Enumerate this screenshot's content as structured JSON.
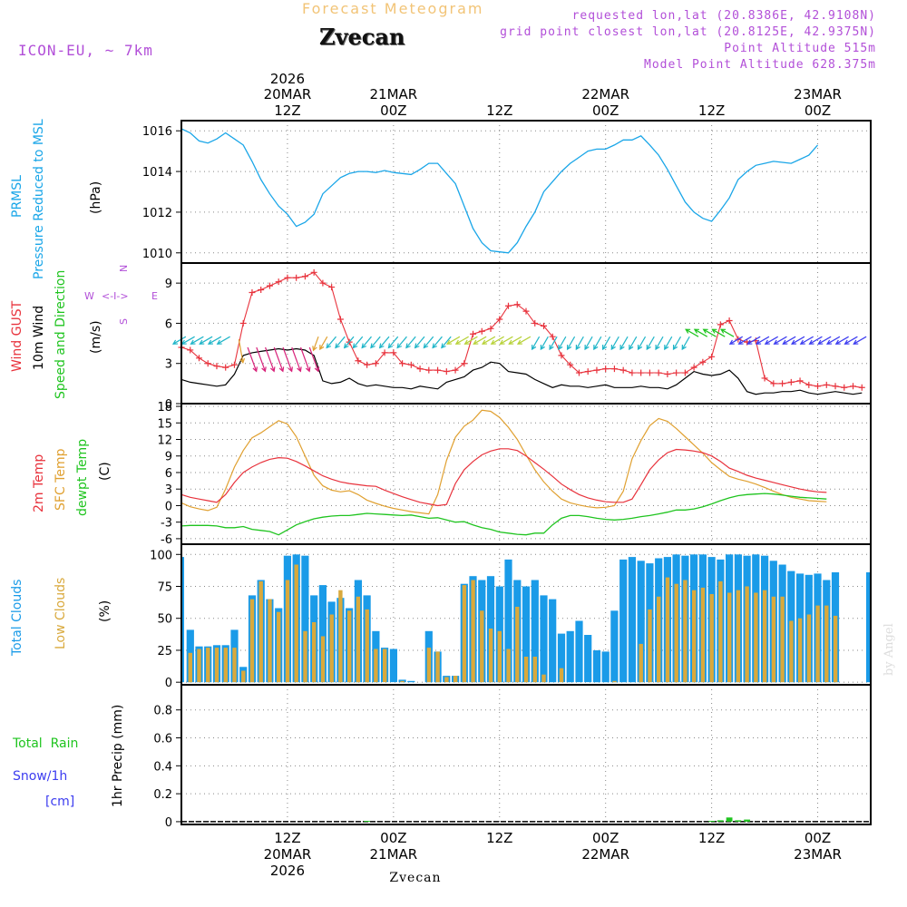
{
  "header": {
    "product": "Forecast Meteogram",
    "station": "Zvecan",
    "model": "ICON-EU, ~ 7km",
    "requested": "requested lon,lat (20.8386E, 42.9108N)",
    "grid_point": "grid point closest lon,lat (20.8125E, 42.9375N)",
    "point_alt": "Point Altitude 515m",
    "model_alt": "Model Point Altitude 628.375m",
    "footer_station": "Zvecan",
    "watermark": "by Angel"
  },
  "time_axis": {
    "top": [
      {
        "l1": "2026",
        "l2": "20MAR",
        "l3": "12Z",
        "h": 12
      },
      {
        "l1": "",
        "l2": "21MAR",
        "l3": "00Z",
        "h": 24
      },
      {
        "l1": "",
        "l2": "",
        "l3": "12Z",
        "h": 36
      },
      {
        "l1": "",
        "l2": "22MAR",
        "l3": "00Z",
        "h": 48
      },
      {
        "l1": "",
        "l2": "",
        "l3": "12Z",
        "h": 60
      },
      {
        "l1": "",
        "l2": "23MAR",
        "l3": "00Z",
        "h": 72
      }
    ],
    "bottom": [
      {
        "l1": "12Z",
        "l2": "20MAR",
        "l3": "2026",
        "h": 12
      },
      {
        "l1": "00Z",
        "l2": "21MAR",
        "l3": "",
        "h": 24
      },
      {
        "l1": "12Z",
        "l2": "",
        "l3": "",
        "h": 36
      },
      {
        "l1": "00Z",
        "l2": "22MAR",
        "l3": "",
        "h": 48
      },
      {
        "l1": "12Z",
        "l2": "",
        "l3": "",
        "h": 60
      },
      {
        "l1": "00Z",
        "l2": "23MAR",
        "l3": "",
        "h": 72
      }
    ]
  },
  "panel_labels": {
    "pressure": {
      "name": "PRMSL",
      "desc": "Pressure Reduced to MSL",
      "unit": "(hPa)"
    },
    "wind": {
      "gust": "Wind GUST",
      "wind10": "10m Wind",
      "dir": "Speed and Direction",
      "unit": "(m/s)",
      "compass": {
        "n": "N",
        "s": "S",
        "e": "E",
        "w": "W",
        "arrow": "<-I->"
      }
    },
    "temp": {
      "t2m": "2m Temp",
      "sfc": "SFC Temp",
      "dew": "dewpt Temp",
      "unit": "(C)"
    },
    "cloud": {
      "total": "Total Clouds",
      "low": "Low Clouds",
      "unit": "(%)"
    },
    "precip": {
      "rain": "Total  Rain",
      "snow": "Snow/1h",
      "snow_unit": "[cm]",
      "title": "1hr Precip (mm)"
    }
  },
  "colors": {
    "pressure": "#1aa6e8",
    "gust": "#e8323c",
    "wind": "#000000",
    "t2m": "#e8323c",
    "sfc": "#e0a030",
    "dew": "#1fc41f",
    "total_cloud": "#1a9be8",
    "low_cloud": "#d9a93c",
    "rain": "#1fc41f",
    "snow": "#3c3cf0",
    "label_purple": "#b24fd8",
    "grid": "#888888"
  },
  "chart_data": [
    {
      "type": "line",
      "id": "pressure",
      "title": "PRMSL Pressure Reduced to MSL",
      "ylabel": "(hPa)",
      "ylim": [
        1009.5,
        1016.5
      ],
      "yticks": [
        1010,
        1012,
        1014,
        1016
      ],
      "x_hours_start": 0,
      "x_step_hours": 1,
      "values": [
        1016.1,
        1015.9,
        1015.5,
        1015.4,
        1015.6,
        1015.9,
        1015.6,
        1015.3,
        1014.5,
        1013.6,
        1012.9,
        1012.3,
        1011.9,
        1011.3,
        1011.5,
        1011.9,
        1012.9,
        1013.3,
        1013.7,
        1013.9,
        1014.0,
        1014.0,
        1013.95,
        1014.05,
        1013.95,
        1013.9,
        1013.85,
        1014.1,
        1014.4,
        1014.4,
        1013.9,
        1013.4,
        1012.3,
        1011.2,
        1010.5,
        1010.1,
        1010.05,
        1010.0,
        1010.5,
        1011.3,
        1012.0,
        1013.0,
        1013.5,
        1014.0,
        1014.4,
        1014.7,
        1015.0,
        1015.1,
        1015.1,
        1015.3,
        1015.55,
        1015.55,
        1015.75,
        1015.3,
        1014.8,
        1014.1,
        1013.3,
        1012.5,
        1012.0,
        1011.7,
        1011.55,
        1012.1,
        1012.7,
        1013.6,
        1014.0,
        1014.3,
        1014.4,
        1014.5,
        1014.45,
        1014.4,
        1014.6,
        1014.8,
        1015.3
      ]
    },
    {
      "type": "line",
      "id": "wind",
      "title": "Wind GUST / 10m Wind Speed and Direction",
      "ylabel": "(m/s)",
      "ylim": [
        0,
        10.5
      ],
      "yticks": [
        0,
        3,
        6,
        9
      ],
      "series": [
        {
          "name": "Wind GUST",
          "values": [
            4.2,
            4.0,
            3.4,
            3.0,
            2.8,
            2.7,
            2.9,
            6.0,
            8.3,
            8.5,
            8.8,
            9.1,
            9.4,
            9.4,
            9.5,
            9.8,
            9.0,
            8.7,
            6.3,
            4.6,
            3.2,
            2.9,
            3.0,
            3.8,
            3.8,
            3.0,
            2.9,
            2.6,
            2.5,
            2.5,
            2.4,
            2.5,
            3.0,
            5.2,
            5.4,
            5.6,
            6.3,
            7.3,
            7.4,
            6.9,
            6.0,
            5.8,
            5.0,
            3.6,
            2.9,
            2.3,
            2.4,
            2.5,
            2.6,
            2.6,
            2.5,
            2.3,
            2.3,
            2.3,
            2.3,
            2.2,
            2.3,
            2.3,
            2.7,
            3.1,
            3.5,
            5.9,
            6.2,
            4.8,
            4.6,
            4.7,
            1.9,
            1.5,
            1.5,
            1.6,
            1.7,
            1.4,
            1.3,
            1.4,
            1.3,
            1.2,
            1.3,
            1.2
          ]
        },
        {
          "name": "10m Wind",
          "values": [
            1.8,
            1.6,
            1.5,
            1.4,
            1.3,
            1.4,
            2.2,
            3.6,
            3.8,
            3.9,
            4.0,
            4.1,
            4.0,
            4.1,
            4.0,
            3.6,
            1.7,
            1.5,
            1.6,
            1.9,
            1.5,
            1.3,
            1.4,
            1.3,
            1.2,
            1.2,
            1.1,
            1.3,
            1.2,
            1.1,
            1.6,
            1.8,
            2.0,
            2.5,
            2.7,
            3.1,
            3.0,
            2.4,
            2.3,
            2.2,
            1.8,
            1.5,
            1.2,
            1.4,
            1.3,
            1.3,
            1.2,
            1.3,
            1.4,
            1.2,
            1.2,
            1.2,
            1.3,
            1.2,
            1.2,
            1.1,
            1.4,
            1.9,
            2.4,
            2.2,
            2.1,
            2.2,
            2.5,
            1.9,
            0.9,
            0.7,
            0.8,
            0.8,
            0.9,
            0.9,
            1.0,
            0.8,
            0.7,
            0.8,
            0.9,
            0.8,
            0.7,
            0.8
          ]
        }
      ],
      "wind_arrows": {
        "speed": [
          5,
          5,
          5,
          5,
          5,
          5,
          5,
          4,
          4,
          4,
          4,
          4,
          4,
          4,
          4,
          4,
          4,
          5,
          5,
          5,
          5,
          5,
          5,
          5,
          5,
          5,
          5,
          5,
          5,
          5,
          5,
          5,
          5,
          5,
          5,
          5,
          5,
          5,
          5,
          5,
          5,
          5,
          5,
          5,
          5,
          5,
          5,
          5,
          5,
          5,
          5,
          5,
          5,
          5,
          5,
          5,
          5,
          5,
          5,
          5,
          5,
          5,
          5,
          5,
          5,
          5,
          5,
          5,
          5,
          5,
          5,
          5,
          5,
          5,
          5,
          5,
          5,
          5
        ],
        "color_group": [
          "c",
          "c",
          "c",
          "c",
          "c",
          "c",
          "o",
          "m",
          "m",
          "m",
          "m",
          "m",
          "m",
          "m",
          "m",
          "o",
          "o",
          "c",
          "c",
          "c",
          "c",
          "c",
          "c",
          "c",
          "c",
          "c",
          "c",
          "c",
          "c",
          "c",
          "c",
          "y",
          "y",
          "y",
          "y",
          "y",
          "y",
          "y",
          "y",
          "y",
          "c",
          "c",
          "c",
          "c",
          "c",
          "c",
          "c",
          "c",
          "c",
          "c",
          "c",
          "c",
          "c",
          "c",
          "c",
          "c",
          "c",
          "c",
          "g",
          "g",
          "g",
          "g",
          "g",
          "b",
          "b",
          "b",
          "b",
          "b",
          "b",
          "b",
          "b",
          "b",
          "b",
          "b",
          "b",
          "b",
          "b",
          "b"
        ],
        "direction_deg": [
          300,
          300,
          300,
          300,
          300,
          300,
          10,
          20,
          20,
          20,
          20,
          20,
          20,
          20,
          20,
          340,
          330,
          320,
          320,
          320,
          320,
          320,
          320,
          320,
          320,
          320,
          320,
          320,
          320,
          320,
          320,
          300,
          300,
          300,
          300,
          300,
          300,
          300,
          300,
          300,
          330,
          330,
          330,
          330,
          330,
          330,
          330,
          330,
          330,
          330,
          330,
          330,
          330,
          330,
          330,
          330,
          330,
          330,
          240,
          240,
          240,
          240,
          240,
          300,
          300,
          300,
          300,
          300,
          300,
          300,
          300,
          300,
          300,
          300,
          300,
          300,
          300,
          300
        ]
      }
    },
    {
      "type": "line",
      "id": "temperature",
      "title": "2m Temp / SFC Temp / dewpt Temp",
      "ylabel": "(C)",
      "ylim": [
        -7,
        18.5
      ],
      "yticks": [
        -6,
        -3,
        0,
        3,
        6,
        9,
        12,
        15,
        18
      ],
      "series": [
        {
          "name": "2m Temp",
          "values": [
            2.0,
            1.5,
            1.2,
            0.9,
            0.6,
            2.0,
            4.2,
            6.0,
            7.0,
            7.8,
            8.4,
            8.7,
            8.6,
            8.0,
            7.2,
            6.3,
            5.4,
            4.8,
            4.3,
            4.0,
            3.8,
            3.6,
            3.5,
            2.8,
            2.2,
            1.6,
            1.1,
            0.6,
            0.3,
            0.0,
            0.2,
            4.0,
            6.5,
            8.0,
            9.2,
            9.9,
            10.3,
            10.3,
            10.0,
            9.0,
            7.8,
            6.6,
            5.3,
            3.9,
            2.9,
            2.0,
            1.4,
            1.0,
            0.7,
            0.6,
            0.6,
            1.2,
            3.8,
            6.5,
            8.3,
            9.6,
            10.2,
            10.1,
            9.9,
            9.6,
            9.0,
            8.0,
            6.8,
            6.2,
            5.5,
            5.0,
            4.6,
            4.2,
            3.8,
            3.4,
            3.0,
            2.7,
            2.5,
            2.4
          ]
        },
        {
          "name": "SFC Temp",
          "values": [
            0.5,
            -0.2,
            -0.6,
            -0.9,
            -0.3,
            3.0,
            7.0,
            10.0,
            12.3,
            13.2,
            14.3,
            15.4,
            14.8,
            12.5,
            9.0,
            5.5,
            3.6,
            2.8,
            2.5,
            2.7,
            2.0,
            1.0,
            0.4,
            -0.1,
            -0.5,
            -0.8,
            -1.1,
            -1.3,
            -1.5,
            2.0,
            8.2,
            12.4,
            14.4,
            15.5,
            17.3,
            17.1,
            16.0,
            14.2,
            12.0,
            9.2,
            6.5,
            4.3,
            2.6,
            1.2,
            0.5,
            0.1,
            -0.2,
            -0.4,
            -0.3,
            0.0,
            2.6,
            8.5,
            11.8,
            14.5,
            15.8,
            15.3,
            14.0,
            12.5,
            11.0,
            9.5,
            7.8,
            6.5,
            5.3,
            4.8,
            4.4,
            3.9,
            3.3,
            2.6,
            2.0,
            1.5,
            1.2,
            0.9,
            0.8,
            0.7
          ]
        },
        {
          "name": "dewpt Temp",
          "values": [
            -3.7,
            -3.6,
            -3.6,
            -3.6,
            -3.7,
            -4.0,
            -4.0,
            -3.8,
            -4.3,
            -4.5,
            -4.7,
            -5.3,
            -4.4,
            -3.5,
            -2.9,
            -2.4,
            -2.1,
            -1.9,
            -1.8,
            -1.8,
            -1.6,
            -1.4,
            -1.5,
            -1.6,
            -1.7,
            -1.8,
            -1.7,
            -2.0,
            -2.3,
            -2.2,
            -2.6,
            -3.0,
            -2.9,
            -3.5,
            -4.0,
            -4.3,
            -4.8,
            -5.0,
            -5.2,
            -5.3,
            -5.0,
            -5.0,
            -3.5,
            -2.3,
            -1.8,
            -1.8,
            -2.0,
            -2.3,
            -2.5,
            -2.6,
            -2.5,
            -2.3,
            -2.0,
            -1.8,
            -1.5,
            -1.2,
            -0.8,
            -0.8,
            -0.6,
            -0.2,
            0.3,
            0.9,
            1.4,
            1.8,
            2.0,
            2.1,
            2.2,
            2.1,
            1.9,
            1.7,
            1.5,
            1.4,
            1.3,
            1.2
          ]
        }
      ]
    },
    {
      "type": "bar",
      "id": "clouds",
      "title": "Total Clouds / Low Clouds",
      "ylabel": "(%)",
      "ylim": [
        -2,
        108
      ],
      "yticks": [
        0,
        25,
        50,
        75,
        100
      ],
      "series": [
        {
          "name": "Total Clouds",
          "values": [
            98,
            41,
            28,
            28,
            29,
            29,
            41,
            12,
            68,
            80,
            65,
            58,
            99,
            100,
            99,
            68,
            76,
            63,
            66,
            58,
            80,
            68,
            40,
            27,
            26,
            2,
            1,
            0,
            40,
            24,
            5,
            5,
            77,
            83,
            80,
            83,
            75,
            96,
            80,
            75,
            80,
            68,
            65,
            38,
            40,
            48,
            37,
            25,
            24,
            56,
            96,
            98,
            95,
            93,
            97,
            98,
            100,
            99,
            100,
            100,
            98,
            96,
            100,
            100,
            99,
            100,
            99,
            95,
            92,
            87,
            85,
            84,
            85,
            80,
            86
          ]
        },
        {
          "name": "Low Clouds",
          "values": [
            20,
            23,
            26,
            27,
            27,
            27,
            27,
            9,
            65,
            79,
            65,
            55,
            80,
            92,
            40,
            47,
            36,
            53,
            72,
            56,
            67,
            57,
            26,
            26,
            0,
            1,
            0,
            0,
            27,
            24,
            4,
            5,
            76,
            80,
            56,
            42,
            40,
            26,
            59,
            20,
            20,
            6,
            0,
            11,
            0,
            0,
            0,
            0,
            0,
            1,
            0,
            0,
            30,
            57,
            67,
            82,
            77,
            80,
            72,
            74,
            69,
            79,
            70,
            72,
            75,
            70,
            72,
            67,
            67,
            48,
            50,
            53,
            60,
            60,
            52
          ]
        }
      ]
    },
    {
      "type": "bar",
      "id": "precip",
      "title": "1hr Precip (mm)",
      "ylabel": "1hr Precip (mm)",
      "ylim": [
        -0.02,
        0.98
      ],
      "yticks": [
        0,
        0.2,
        0.4,
        0.6,
        0.8
      ],
      "series": [
        {
          "name": "Total Rain",
          "values": [
            0,
            0,
            0,
            0,
            0,
            0,
            0,
            0,
            0,
            0,
            0,
            0,
            0,
            0,
            0,
            0,
            0,
            0,
            0,
            0,
            0,
            0.005,
            0,
            0,
            0,
            0,
            0,
            0,
            0,
            0,
            0,
            0,
            0,
            0,
            0,
            0,
            0,
            0,
            0,
            0,
            0,
            0,
            0,
            0,
            0,
            0,
            0,
            0,
            0,
            0,
            0,
            0,
            0,
            0,
            0,
            0,
            0,
            0,
            0,
            0,
            0.005,
            0.01,
            0.03,
            0.01,
            0.015,
            0,
            0,
            0,
            0,
            0,
            0,
            0,
            0,
            0,
            0
          ]
        },
        {
          "name": "Snow/1h",
          "values": []
        }
      ]
    }
  ]
}
